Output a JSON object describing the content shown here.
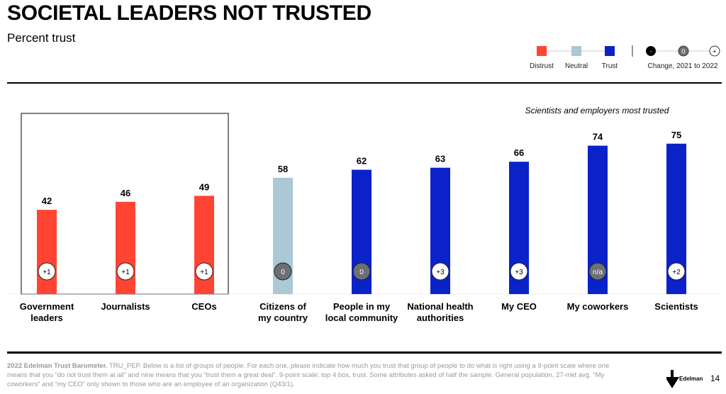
{
  "title": "SOCIETAL LEADERS NOT TRUSTED",
  "subtitle": "Percent trust",
  "legend": {
    "items": [
      {
        "label": "Distrust",
        "color": "#ff4433"
      },
      {
        "label": "Neutral",
        "color": "#aac8d6"
      },
      {
        "label": "Trust",
        "color": "#0a22c8"
      }
    ],
    "change_symbols": [
      "-",
      "0",
      "+"
    ],
    "change_label": "Change, 2021 to 2022"
  },
  "annotation": "Scientists and employers most trusted",
  "chart_data": {
    "type": "bar",
    "categories": [
      "Government leaders",
      "Journalists",
      "CEOs",
      "Citizens of my country",
      "People in my local community",
      "National health authorities",
      "My CEO",
      "My coworkers",
      "Scientists"
    ],
    "category_lines": [
      [
        "Government",
        "leaders"
      ],
      [
        "Journalists"
      ],
      [
        "CEOs"
      ],
      [
        "Citizens of",
        "my country"
      ],
      [
        "People in my",
        "local community"
      ],
      [
        "National health",
        "authorities"
      ],
      [
        "My CEO"
      ],
      [
        "My coworkers"
      ],
      [
        "Scientists"
      ]
    ],
    "values": [
      42,
      46,
      49,
      58,
      62,
      63,
      66,
      74,
      75
    ],
    "trust_level": [
      "distrust",
      "distrust",
      "distrust",
      "neutral",
      "trust",
      "trust",
      "trust",
      "trust",
      "trust"
    ],
    "change": [
      "+1",
      "+1",
      "+1",
      "0",
      "0",
      "+3",
      "+3",
      "n/a",
      "+2"
    ],
    "ylim": [
      0,
      100
    ],
    "highlighted_group": [
      0,
      1,
      2
    ]
  },
  "footer": {
    "bold": "2022 Edelman Trust Barometer.",
    "text": " TRU_PEP. Below is a list of groups of people. For each one, please indicate how much you trust that group of people to do what is right using a 9-point scale where one means that you “do not trust them at all” and nine means that you “trust them a great deal”. 9-point scale; top 4 box, trust. Some attributes asked of half the sample. General population, 27-mkt avg. “My coworkers” and “my CEO” only shown to those who are an employee of an organization (Q43/1).",
    "brand": "Edelman",
    "page": "14"
  }
}
